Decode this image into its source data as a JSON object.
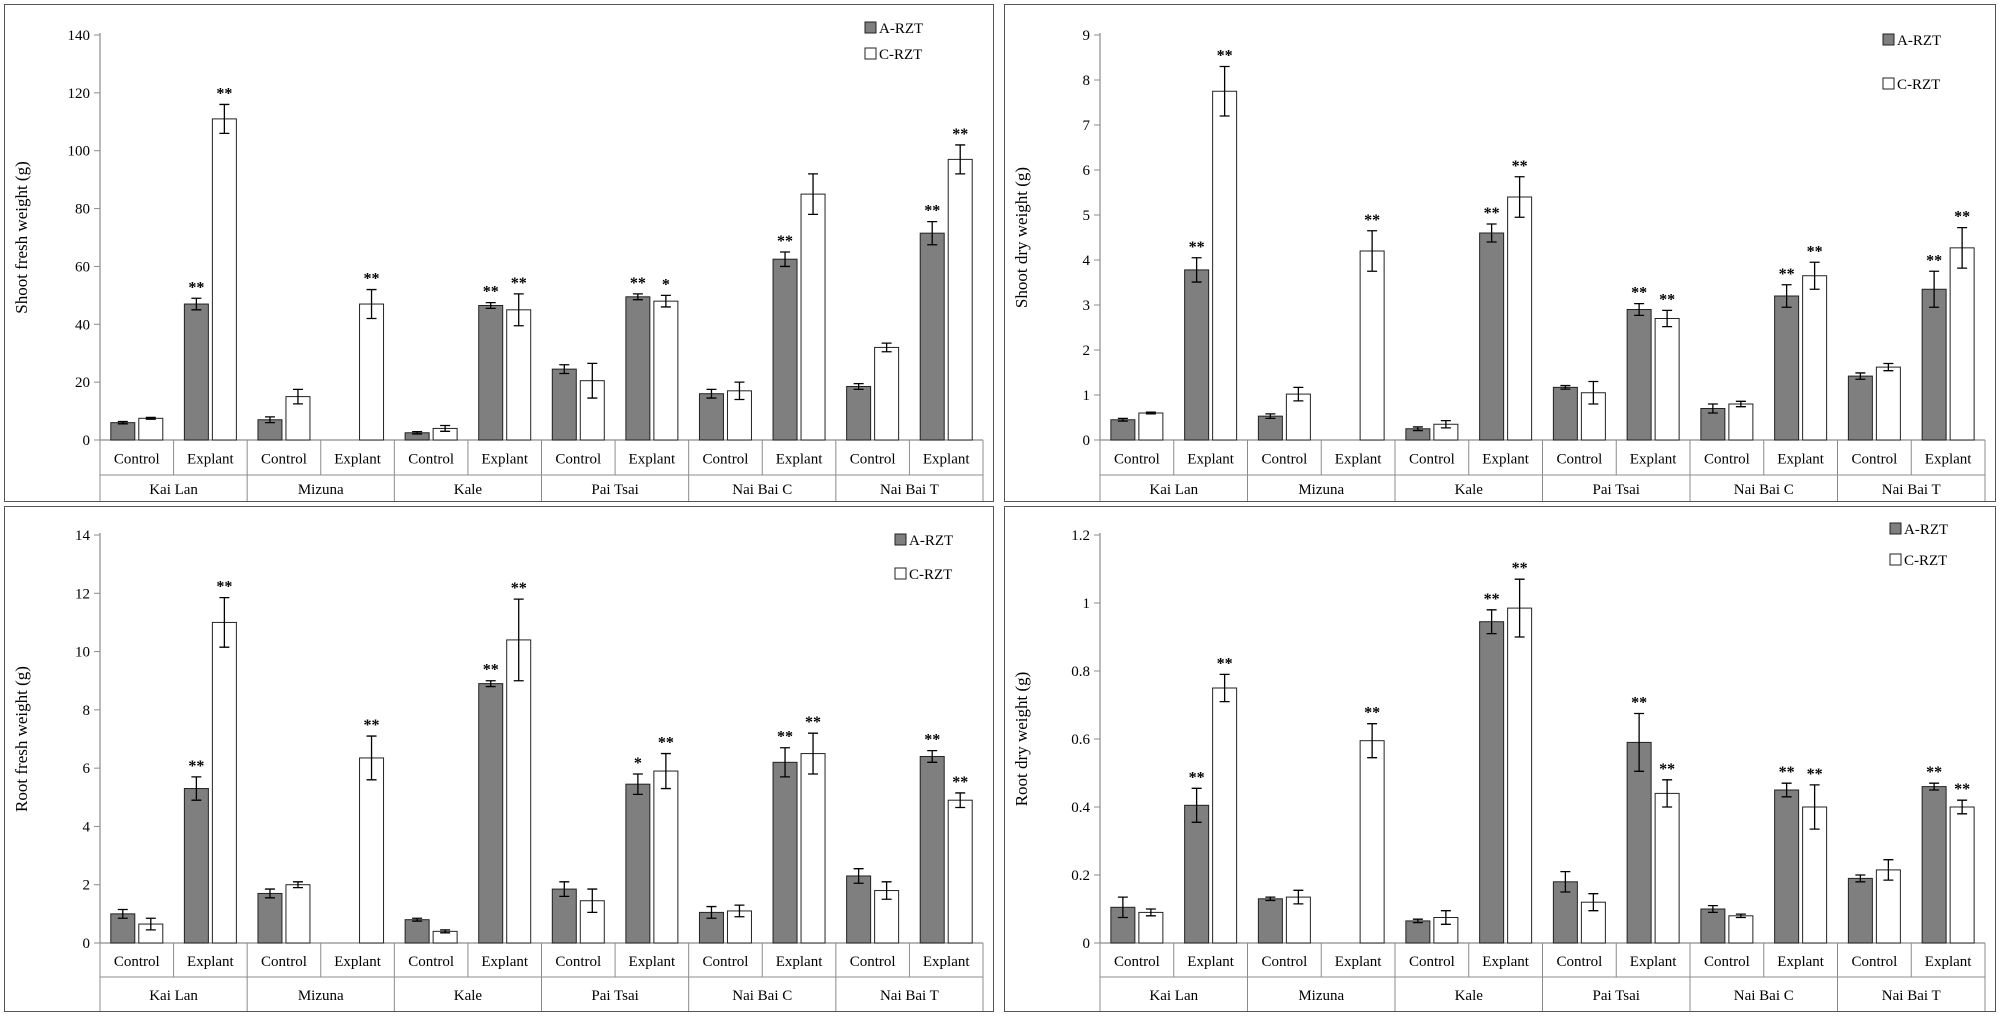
{
  "figure": {
    "colors": {
      "a_rzt_fill": "#7f7f7f",
      "c_rzt_fill": "#ffffff",
      "outline": "#222222",
      "axis": "#8c8c8c",
      "frame": "#555555"
    }
  },
  "chart_data": [
    {
      "type": "bar",
      "title": "",
      "ylabel": "Shoot fresh weight (g)",
      "xlabel": "",
      "ylim": [
        0,
        140
      ],
      "yticks": [
        0,
        20,
        40,
        60,
        80,
        100,
        120,
        140
      ],
      "ytick_labels": [
        "0",
        "20",
        "40",
        "60",
        "80",
        "100",
        "120",
        "140"
      ],
      "groups": [
        "Kai Lan",
        "Mizuna",
        "Kale",
        "Pai Tsai",
        "Nai Bai C",
        "Nai Bai T"
      ],
      "subcategories": [
        "Control",
        "Explant"
      ],
      "legend": [
        "A-RZT",
        "C-RZT"
      ],
      "legend_position": "top-right",
      "series": [
        {
          "name": "A-RZT",
          "values": [
            6,
            47,
            7,
            null,
            2.5,
            46.5,
            24.5,
            49.5,
            16,
            62.5,
            18.5,
            71.5
          ],
          "errors": [
            0.4,
            2,
            1,
            null,
            0.4,
            1,
            1.5,
            1,
            1.5,
            2.5,
            1,
            4
          ],
          "marks": [
            "",
            "**",
            "",
            "",
            "",
            "**",
            "",
            "**",
            "",
            "**",
            "",
            "**"
          ]
        },
        {
          "name": "C-RZT",
          "values": [
            7.5,
            111,
            15,
            47,
            4,
            45,
            20.5,
            48,
            17,
            85,
            32,
            97
          ],
          "errors": [
            0.3,
            5,
            2.5,
            5,
            1,
            5.5,
            6,
            2,
            3,
            7,
            1.5,
            5
          ],
          "marks": [
            "",
            "**",
            "",
            "**",
            "",
            "**",
            "",
            "*",
            "",
            "",
            "",
            "**"
          ]
        }
      ]
    },
    {
      "type": "bar",
      "title": "",
      "ylabel": "Shoot  dry weight (g)",
      "xlabel": "",
      "ylim": [
        0,
        9
      ],
      "yticks": [
        0,
        1,
        2,
        3,
        4,
        5,
        6,
        7,
        8,
        9
      ],
      "ytick_labels": [
        "0",
        "1",
        "2",
        "3",
        "4",
        "5",
        "6",
        "7",
        "8",
        "9"
      ],
      "groups": [
        "Kai Lan",
        "Mizuna",
        "Kale",
        "Pai Tsai",
        "Nai Bai C",
        "Nai Bai T"
      ],
      "subcategories": [
        "Control",
        "Explant"
      ],
      "legend": [
        "A-RZT",
        "C-RZT"
      ],
      "legend_position": "top-right",
      "series": [
        {
          "name": "A-RZT",
          "values": [
            0.45,
            3.78,
            0.53,
            null,
            0.25,
            4.6,
            1.17,
            2.9,
            0.7,
            3.2,
            1.42,
            3.35
          ],
          "errors": [
            0.03,
            0.27,
            0.05,
            null,
            0.04,
            0.2,
            0.04,
            0.13,
            0.1,
            0.25,
            0.07,
            0.4
          ],
          "marks": [
            "",
            "**",
            "",
            "",
            "",
            "**",
            "",
            "**",
            "",
            "**",
            "",
            "**"
          ]
        },
        {
          "name": "C-RZT",
          "values": [
            0.6,
            7.75,
            1.02,
            4.2,
            0.35,
            5.4,
            1.05,
            2.7,
            0.8,
            3.65,
            1.62,
            4.27
          ],
          "errors": [
            0.02,
            0.55,
            0.15,
            0.45,
            0.08,
            0.45,
            0.25,
            0.18,
            0.06,
            0.3,
            0.08,
            0.45
          ],
          "marks": [
            "",
            "**",
            "",
            "**",
            "",
            "**",
            "",
            "**",
            "",
            "**",
            "",
            "**"
          ]
        }
      ]
    },
    {
      "type": "bar",
      "title": "",
      "ylabel": "Root fresh weight (g)",
      "xlabel": "",
      "ylim": [
        0,
        14
      ],
      "yticks": [
        0,
        2,
        4,
        6,
        8,
        10,
        12,
        14
      ],
      "ytick_labels": [
        "0",
        "2",
        "4",
        "6",
        "8",
        "10",
        "12",
        "14"
      ],
      "groups": [
        "Kai Lan",
        "Mizuna",
        "Kale",
        "Pai Tsai",
        "Nai Bai C",
        "Nai Bai T"
      ],
      "subcategories": [
        "Control",
        "Explant"
      ],
      "legend": [
        "A-RZT",
        "C-RZT"
      ],
      "legend_position": "top-right",
      "series": [
        {
          "name": "A-RZT",
          "values": [
            1,
            5.3,
            1.7,
            null,
            0.8,
            8.9,
            1.85,
            5.45,
            1.05,
            6.2,
            2.3,
            6.4
          ],
          "errors": [
            0.15,
            0.4,
            0.15,
            null,
            0.05,
            0.1,
            0.25,
            0.35,
            0.2,
            0.5,
            0.25,
            0.2
          ],
          "marks": [
            "",
            "**",
            "",
            "",
            "",
            "**",
            "",
            "*",
            "",
            "**",
            "",
            "**"
          ]
        },
        {
          "name": "C-RZT",
          "values": [
            0.65,
            11,
            2,
            6.35,
            0.4,
            10.4,
            1.45,
            5.9,
            1.1,
            6.5,
            1.8,
            4.9
          ],
          "errors": [
            0.2,
            0.85,
            0.1,
            0.75,
            0.05,
            1.4,
            0.4,
            0.6,
            0.2,
            0.7,
            0.3,
            0.25
          ],
          "marks": [
            "",
            "**",
            "",
            "**",
            "",
            "**",
            "",
            "**",
            "",
            "**",
            "",
            "**"
          ]
        }
      ]
    },
    {
      "type": "bar",
      "title": "",
      "ylabel": "Root dry weight (g)",
      "xlabel": "",
      "ylim": [
        0,
        1.2
      ],
      "yticks": [
        0,
        0.2,
        0.4,
        0.6,
        0.8,
        1.0,
        1.2
      ],
      "ytick_labels": [
        "0",
        "0.2",
        "0.4",
        "0.6",
        "0.8",
        "1",
        "1.2"
      ],
      "groups": [
        "Kai Lan",
        "Mizuna",
        "Kale",
        "Pai Tsai",
        "Nai Bai C",
        "Nai Bai T"
      ],
      "subcategories": [
        "Control",
        "Explant"
      ],
      "legend": [
        "A-RZT",
        "C-RZT"
      ],
      "legend_position": "top-right",
      "series": [
        {
          "name": "A-RZT",
          "values": [
            0.105,
            0.405,
            0.13,
            null,
            0.065,
            0.945,
            0.18,
            0.59,
            0.1,
            0.45,
            0.19,
            0.46
          ],
          "errors": [
            0.03,
            0.05,
            0.005,
            null,
            0.005,
            0.035,
            0.03,
            0.085,
            0.01,
            0.02,
            0.01,
            0.01
          ],
          "marks": [
            "",
            "**",
            "",
            "",
            "",
            "**",
            "",
            "**",
            "",
            "**",
            "",
            "**"
          ]
        },
        {
          "name": "C-RZT",
          "values": [
            0.09,
            0.75,
            0.135,
            0.595,
            0.075,
            0.985,
            0.12,
            0.44,
            0.08,
            0.4,
            0.215,
            0.4
          ],
          "errors": [
            0.01,
            0.04,
            0.02,
            0.05,
            0.02,
            0.085,
            0.025,
            0.04,
            0.005,
            0.065,
            0.03,
            0.02
          ],
          "marks": [
            "",
            "**",
            "",
            "**",
            "",
            "**",
            "",
            "**",
            "",
            "**",
            "",
            "**"
          ]
        }
      ]
    }
  ]
}
